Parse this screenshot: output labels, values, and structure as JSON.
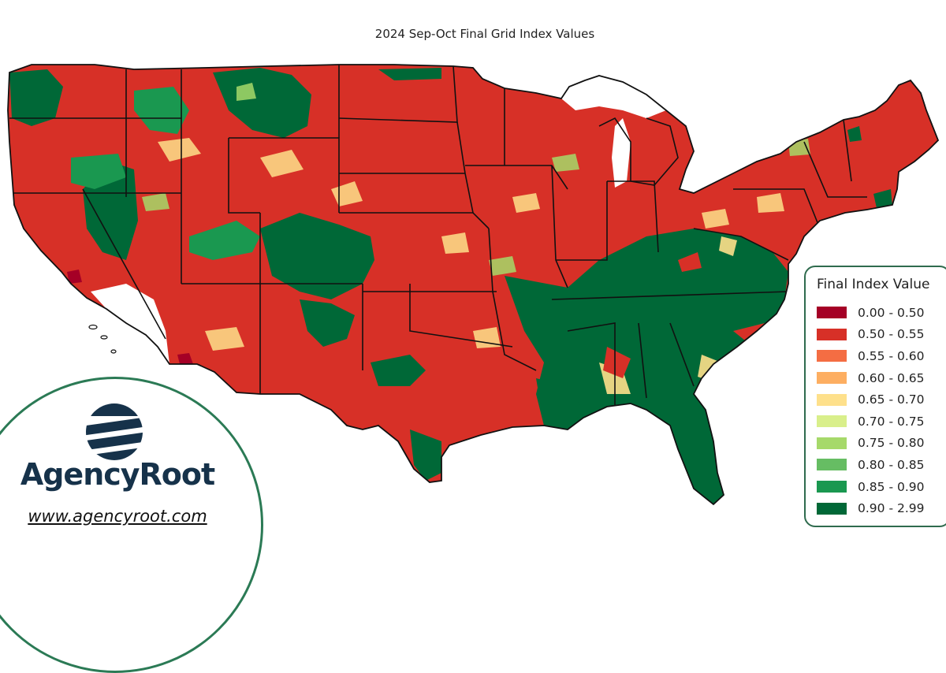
{
  "title": "2024 Sep-Oct Final Grid Index Values",
  "legend": {
    "title": "Final Index Value",
    "items": [
      {
        "label": "0.00 - 0.50",
        "color": "#a50026"
      },
      {
        "label": "0.50 - 0.55",
        "color": "#d73027"
      },
      {
        "label": "0.55 - 0.60",
        "color": "#f46d43"
      },
      {
        "label": "0.60 - 0.65",
        "color": "#fdae61"
      },
      {
        "label": "0.65 - 0.70",
        "color": "#fee08b"
      },
      {
        "label": "0.70 - 0.75",
        "color": "#d9ef8b"
      },
      {
        "label": "0.75 - 0.80",
        "color": "#a6d96a"
      },
      {
        "label": "0.80 - 0.85",
        "color": "#66bd63"
      },
      {
        "label": "0.85 - 0.90",
        "color": "#1a9850"
      },
      {
        "label": "0.90 - 2.99",
        "color": "#006837"
      }
    ]
  },
  "brand": {
    "name": "AgencyRoot",
    "url": "www.agencyroot.com",
    "color": "#16324a",
    "ring_color": "#2b7a55"
  }
}
